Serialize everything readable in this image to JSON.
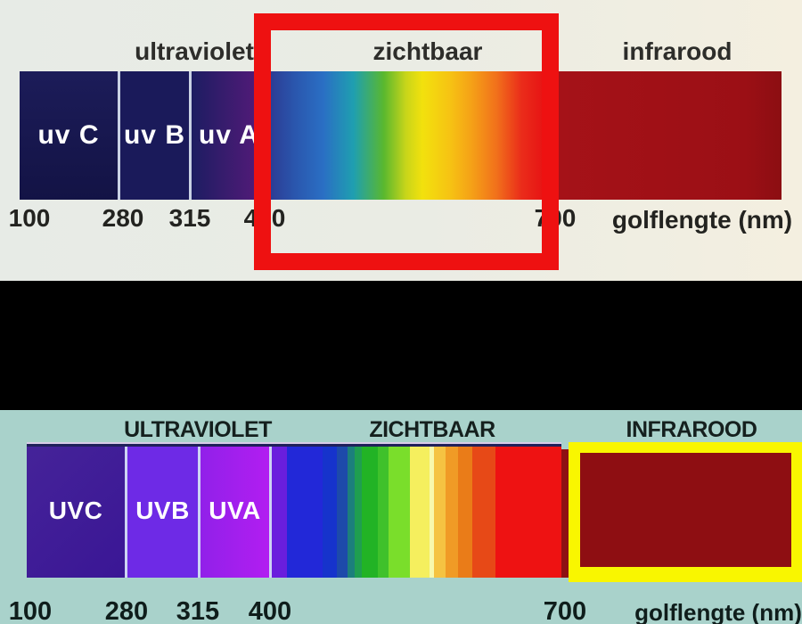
{
  "colors": {
    "top_background": "#eceae1",
    "top_highlight_box": "#ee1111",
    "separator": "#000000",
    "bottom_background": "#a9d2cb",
    "bottom_highlight_box": "#f9f600",
    "infrared_bar": "#9b0f15"
  },
  "top_chart": {
    "region_labels": [
      {
        "id": "ultraviolet",
        "label": "ultraviolet"
      },
      {
        "id": "zichtbaar",
        "label": "zichtbaar"
      },
      {
        "id": "infrarood",
        "label": "infrarood"
      }
    ],
    "uv_bands": [
      {
        "label": "uv C"
      },
      {
        "label": "uv B"
      },
      {
        "label": "uv A"
      }
    ],
    "ticks": [
      "100",
      "280",
      "315",
      "400",
      "700"
    ],
    "axis_label": "golflengte (nm)",
    "highlighted_region": "zichtbaar"
  },
  "bottom_chart": {
    "region_labels": [
      {
        "id": "ultraviolet",
        "label": "ULTRAVIOLET"
      },
      {
        "id": "zichtbaar",
        "label": "ZICHTBAAR"
      },
      {
        "id": "infrarood",
        "label": "INFRAROOD"
      }
    ],
    "uv_bands": [
      {
        "label": "UVC"
      },
      {
        "label": "UVB"
      },
      {
        "label": "UVA"
      }
    ],
    "ticks": [
      "100",
      "280",
      "315",
      "400",
      "700"
    ],
    "axis_label": "golflengte (nm)",
    "highlighted_region": "INFRAROOD"
  }
}
